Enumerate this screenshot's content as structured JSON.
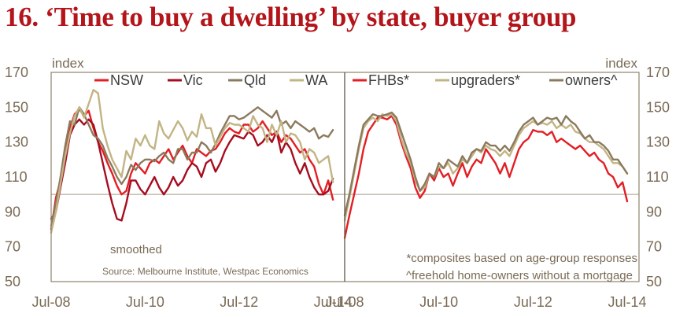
{
  "title": "16. ‘Time to buy a dwelling’ by state, buyer group",
  "colors": {
    "title": "#b3151b",
    "axis_text": "#7a6a55",
    "frame": "#8f826c",
    "reference": "#a89a86"
  },
  "chart_data": [
    {
      "type": "line",
      "name": "by state",
      "ylabel": "index",
      "ylim": [
        50,
        170
      ],
      "yticks": [
        50,
        70,
        90,
        110,
        130,
        150,
        170
      ],
      "xlim": [
        2008.5,
        2014.75
      ],
      "xticks": [
        {
          "value": 2008.5,
          "label": "Jul-08"
        },
        {
          "value": 2010.5,
          "label": "Jul-10"
        },
        {
          "value": 2012.5,
          "label": "Jul-12"
        },
        {
          "value": 2014.5,
          "label": "Jul-14"
        }
      ],
      "reference_line": 100,
      "annotations": [
        "smoothed",
        "Source: Melbourne Institute, Westpac Economics"
      ],
      "x": [
        2008.5,
        2008.6,
        2008.7,
        2008.8,
        2008.9,
        2009.0,
        2009.1,
        2009.2,
        2009.3,
        2009.4,
        2009.5,
        2009.6,
        2009.7,
        2009.8,
        2009.9,
        2010.0,
        2010.1,
        2010.2,
        2010.3,
        2010.4,
        2010.5,
        2010.6,
        2010.7,
        2010.8,
        2010.9,
        2011.0,
        2011.1,
        2011.2,
        2011.3,
        2011.4,
        2011.5,
        2011.6,
        2011.7,
        2011.8,
        2011.9,
        2012.0,
        2012.1,
        2012.2,
        2012.3,
        2012.4,
        2012.5,
        2012.6,
        2012.7,
        2012.8,
        2012.9,
        2013.0,
        2013.1,
        2013.2,
        2013.3,
        2013.4,
        2013.5,
        2013.6,
        2013.7,
        2013.8,
        2013.9,
        2014.0,
        2014.1,
        2014.2,
        2014.3,
        2014.4,
        2014.5
      ],
      "series": [
        {
          "name": "NSW",
          "color": "#e31e24",
          "values": [
            80,
            98,
            108,
            122,
            138,
            146,
            149,
            145,
            148,
            138,
            130,
            125,
            118,
            112,
            105,
            100,
            102,
            112,
            118,
            115,
            112,
            118,
            120,
            118,
            122,
            126,
            120,
            124,
            128,
            122,
            118,
            126,
            124,
            122,
            125,
            126,
            130,
            135,
            138,
            136,
            135,
            140,
            140,
            136,
            138,
            142,
            138,
            134,
            136,
            130,
            134,
            132,
            128,
            124,
            126,
            120,
            116,
            106,
            100,
            108,
            97
          ]
        },
        {
          "name": "Vic",
          "color": "#a50d1f",
          "values": [
            86,
            90,
            104,
            118,
            134,
            140,
            143,
            140,
            143,
            140,
            130,
            118,
            106,
            95,
            86,
            85,
            95,
            108,
            108,
            103,
            100,
            105,
            110,
            104,
            100,
            104,
            110,
            105,
            108,
            114,
            118,
            116,
            110,
            118,
            120,
            113,
            118,
            125,
            130,
            134,
            133,
            132,
            136,
            134,
            128,
            130,
            134,
            130,
            136,
            124,
            130,
            126,
            118,
            112,
            118,
            110,
            104,
            100,
            100,
            102,
            109
          ]
        },
        {
          "name": "Qld",
          "color": "#8b7a5d",
          "values": [
            82,
            95,
            110,
            128,
            142,
            140,
            150,
            146,
            140,
            134,
            132,
            128,
            121,
            116,
            110,
            106,
            110,
            117,
            114,
            118,
            120,
            120,
            119,
            122,
            124,
            120,
            118,
            126,
            126,
            120,
            124,
            124,
            130,
            128,
            124,
            129,
            135,
            140,
            145,
            145,
            143,
            144,
            146,
            148,
            150,
            148,
            146,
            144,
            148,
            140,
            142,
            138,
            142,
            140,
            138,
            136,
            138,
            132,
            134,
            133,
            137
          ]
        },
        {
          "name": "WA",
          "color": "#c2b484",
          "values": [
            78,
            90,
            106,
            122,
            135,
            145,
            150,
            144,
            152,
            160,
            158,
            138,
            128,
            120,
            115,
            110,
            125,
            120,
            132,
            128,
            134,
            128,
            126,
            142,
            135,
            132,
            137,
            142,
            138,
            131,
            136,
            133,
            146,
            138,
            138,
            128,
            133,
            138,
            141,
            140,
            140,
            138,
            136,
            145,
            140,
            138,
            130,
            140,
            134,
            142,
            130,
            135,
            134,
            130,
            120,
            126,
            124,
            118,
            120,
            122,
            107
          ]
        }
      ]
    },
    {
      "type": "line",
      "name": "by buyer group",
      "ylabel": "index",
      "ylim": [
        50,
        170
      ],
      "yticks": [
        50,
        70,
        90,
        110,
        130,
        150,
        170
      ],
      "xlim": [
        2008.5,
        2014.75
      ],
      "xticks": [
        {
          "value": 2008.5,
          "label": "Jul-08"
        },
        {
          "value": 2010.5,
          "label": "Jul-10"
        },
        {
          "value": 2012.5,
          "label": "Jul-12"
        },
        {
          "value": 2014.5,
          "label": "Jul-14"
        }
      ],
      "reference_line": 100,
      "annotations": [
        "*composites based on age-group responses",
        "^freehold home-owners without a mortgage"
      ],
      "x": [
        2008.5,
        2008.6,
        2008.7,
        2008.8,
        2008.9,
        2009.0,
        2009.1,
        2009.2,
        2009.3,
        2009.4,
        2009.5,
        2009.6,
        2009.7,
        2009.8,
        2009.9,
        2010.0,
        2010.1,
        2010.2,
        2010.3,
        2010.4,
        2010.5,
        2010.6,
        2010.7,
        2010.8,
        2010.9,
        2011.0,
        2011.1,
        2011.2,
        2011.3,
        2011.4,
        2011.5,
        2011.6,
        2011.7,
        2011.8,
        2011.9,
        2012.0,
        2012.1,
        2012.2,
        2012.3,
        2012.4,
        2012.5,
        2012.6,
        2012.7,
        2012.8,
        2012.9,
        2013.0,
        2013.1,
        2013.2,
        2013.3,
        2013.4,
        2013.5,
        2013.6,
        2013.7,
        2013.8,
        2013.9,
        2014.0,
        2014.1,
        2014.2,
        2014.3,
        2014.4,
        2014.5
      ],
      "series": [
        {
          "name": "FHBs*",
          "color": "#e31e24",
          "values": [
            75,
            88,
            100,
            112,
            126,
            136,
            140,
            144,
            144,
            143,
            145,
            140,
            130,
            122,
            115,
            104,
            98,
            102,
            112,
            108,
            115,
            110,
            112,
            105,
            112,
            118,
            110,
            116,
            120,
            118,
            126,
            122,
            118,
            112,
            118,
            110,
            118,
            126,
            130,
            132,
            137,
            136,
            136,
            134,
            136,
            130,
            132,
            130,
            128,
            126,
            128,
            125,
            122,
            124,
            120,
            118,
            112,
            110,
            104,
            107,
            96
          ]
        },
        {
          "name": "upgraders*",
          "color": "#c2b484",
          "values": [
            85,
            98,
            112,
            126,
            138,
            142,
            144,
            142,
            146,
            145,
            146,
            142,
            132,
            124,
            118,
            108,
            102,
            104,
            112,
            110,
            116,
            115,
            118,
            112,
            115,
            120,
            118,
            122,
            126,
            124,
            128,
            126,
            125,
            122,
            125,
            122,
            128,
            134,
            138,
            140,
            142,
            140,
            141,
            140,
            142,
            138,
            140,
            138,
            140,
            136,
            135,
            132,
            130,
            130,
            128,
            126,
            122,
            118,
            118,
            116,
            112
          ]
        },
        {
          "name": "owners^",
          "color": "#8b7a5d",
          "values": [
            88,
            100,
            114,
            128,
            140,
            143,
            146,
            145,
            145,
            146,
            147,
            144,
            136,
            128,
            120,
            110,
            102,
            106,
            112,
            110,
            118,
            115,
            120,
            118,
            116,
            122,
            118,
            124,
            126,
            125,
            130,
            128,
            128,
            125,
            128,
            125,
            130,
            136,
            140,
            142,
            144,
            140,
            142,
            144,
            143,
            144,
            140,
            145,
            142,
            140,
            136,
            132,
            134,
            130,
            130,
            128,
            125,
            120,
            120,
            116,
            112
          ]
        }
      ]
    }
  ]
}
